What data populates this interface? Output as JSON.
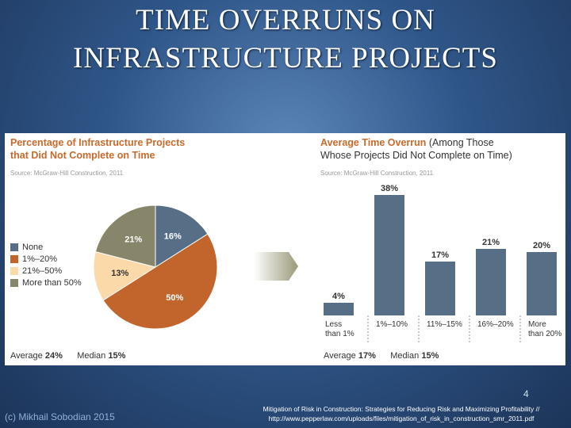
{
  "slide": {
    "title_line1": "TIME OVERRUNS ON",
    "title_line2": "INFRASTRUCTURE PROJECTS",
    "page_number": "4",
    "author": "(c) Mikhail Sobodian 2015",
    "citation_line1": "Mitigation of Risk in Construction: Strategies for Reducing Risk and Maximizing Profitability //",
    "citation_line2": "http://www.pepperlaw.com/uploads/files/mitigation_of_risk_in_construction_smr_2011.pdf"
  },
  "chart_data": [
    {
      "type": "pie",
      "title_line1": "Percentage of Infrastructure Projects",
      "title_line2": "that Did Not Complete on Time",
      "source": "Source: McGraw-Hill Construction, 2011",
      "categories": [
        "None",
        "1%–20%",
        "21%–50%",
        "More than 50%"
      ],
      "values": [
        16,
        50,
        13,
        21
      ],
      "value_labels": [
        "16%",
        "50%",
        "13%",
        "21%"
      ],
      "colors": [
        "#566f87",
        "#c2652d",
        "#fbd9a8",
        "#87866a"
      ],
      "average_label": "Average",
      "average_value": "24%",
      "median_label": "Median",
      "median_value": "15%"
    },
    {
      "type": "bar",
      "title_orange": "Average Time Overrun",
      "title_dark1": "(Among Those",
      "title_dark2": "Whose Projects Did Not Complete on Time)",
      "source": "Source: McGraw-Hill Construction, 2011",
      "categories": [
        [
          "Less",
          "than 1%"
        ],
        [
          "1%–10%"
        ],
        [
          "11%–15%"
        ],
        [
          "16%–20%"
        ],
        [
          "More",
          "than 20%"
        ]
      ],
      "values": [
        4,
        38,
        17,
        21,
        20
      ],
      "value_labels": [
        "4%",
        "38%",
        "17%",
        "21%",
        "20%"
      ],
      "bar_color": "#566f87",
      "ylim": [
        0,
        38
      ],
      "average_label": "Average",
      "average_value": "17%",
      "median_label": "Median",
      "median_value": "15%"
    }
  ]
}
